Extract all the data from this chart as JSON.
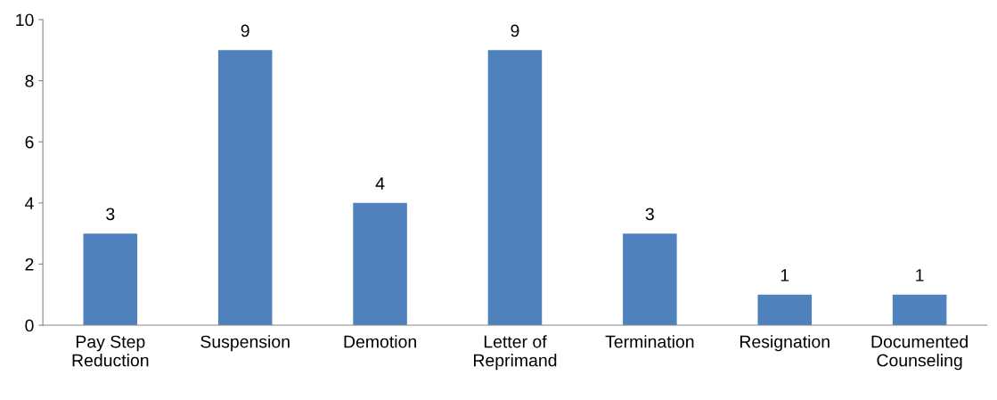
{
  "chart_data": {
    "type": "bar",
    "categories": [
      "Pay Step\nReduction",
      "Suspension",
      "Demotion",
      "Letter of\nReprimand",
      "Termination",
      "Resignation",
      "Documented\nCounseling"
    ],
    "values": [
      3,
      9,
      4,
      9,
      3,
      1,
      1
    ],
    "color": "#4f81bd",
    "ylim": [
      0,
      10
    ],
    "yticks": [
      0,
      2,
      4,
      6,
      8,
      10
    ],
    "grid": false,
    "data_labels": true
  }
}
